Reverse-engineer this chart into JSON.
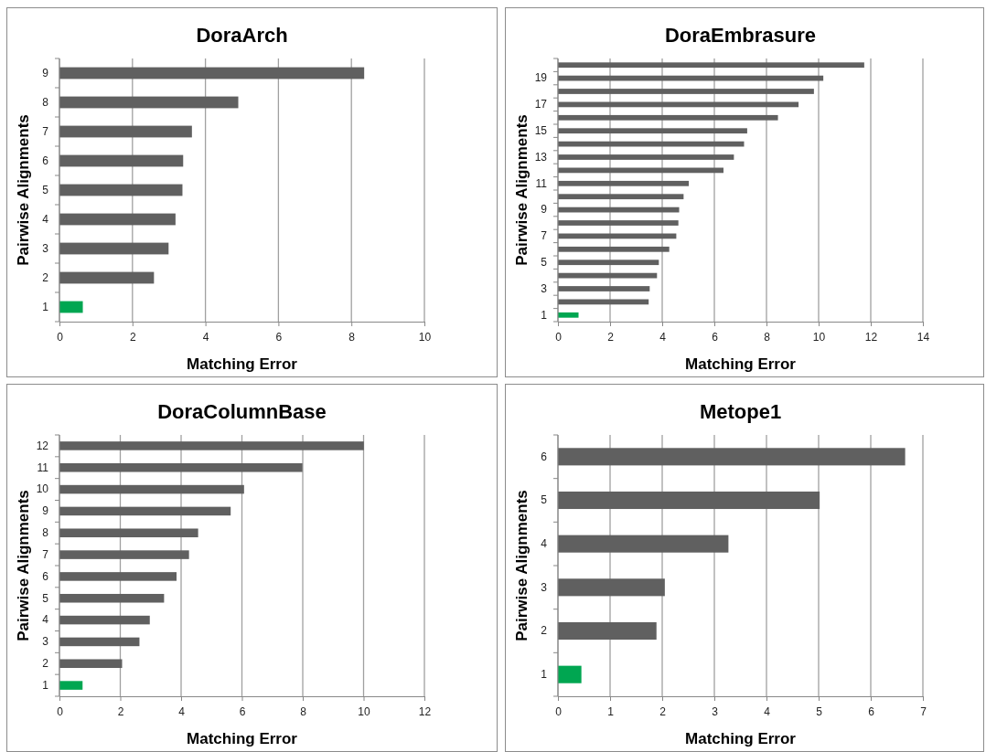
{
  "chart_data": [
    {
      "type": "bar",
      "orientation": "horizontal",
      "title": "DoraArch",
      "xlabel": "Matching Error",
      "ylabel": "Pairwise Alignments",
      "categories": [
        "9",
        "8",
        "7",
        "6",
        "5",
        "4",
        "3",
        "2",
        "1"
      ],
      "values": [
        8.35,
        4.9,
        3.63,
        3.39,
        3.37,
        3.18,
        2.99,
        2.59,
        0.64
      ],
      "colors": [
        "#606060",
        "#606060",
        "#606060",
        "#606060",
        "#606060",
        "#606060",
        "#606060",
        "#606060",
        "#00a651"
      ],
      "xlim": [
        0,
        10
      ],
      "xticks": [
        0,
        2,
        4,
        6,
        8,
        10
      ],
      "grid": "x"
    },
    {
      "type": "bar",
      "orientation": "horizontal",
      "title": "DoraEmbrasure",
      "xlabel": "Matching Error",
      "ylabel": "Pairwise Alignments",
      "categories": [
        null,
        "19",
        null,
        "17",
        null,
        "15",
        null,
        "13",
        null,
        "11",
        null,
        "9",
        null,
        "7",
        null,
        "5",
        null,
        "3",
        null,
        "1"
      ],
      "values": [
        11.75,
        10.18,
        9.82,
        9.23,
        8.44,
        7.26,
        7.14,
        6.75,
        6.35,
        5.02,
        4.82,
        4.65,
        4.62,
        4.54,
        4.27,
        3.87,
        3.8,
        3.52,
        3.48,
        0.79
      ],
      "colors": [
        "#606060",
        "#606060",
        "#606060",
        "#606060",
        "#606060",
        "#606060",
        "#606060",
        "#606060",
        "#606060",
        "#606060",
        "#606060",
        "#606060",
        "#606060",
        "#606060",
        "#606060",
        "#606060",
        "#606060",
        "#606060",
        "#606060",
        "#00a651"
      ],
      "xlim": [
        0,
        14
      ],
      "xticks": [
        0,
        2,
        4,
        6,
        8,
        10,
        12,
        14
      ],
      "grid": "x"
    },
    {
      "type": "bar",
      "orientation": "horizontal",
      "title": "DoraColumnBase",
      "xlabel": "Matching Error",
      "ylabel": "Pairwise Alignments",
      "categories": [
        "12",
        "11",
        "10",
        "9",
        "8",
        "7",
        "6",
        "5",
        "4",
        "3",
        "2",
        "1"
      ],
      "values": [
        10.01,
        7.99,
        6.07,
        5.63,
        4.56,
        4.26,
        3.85,
        3.44,
        2.97,
        2.63,
        2.06,
        0.76
      ],
      "colors": [
        "#606060",
        "#606060",
        "#606060",
        "#606060",
        "#606060",
        "#606060",
        "#606060",
        "#606060",
        "#606060",
        "#606060",
        "#606060",
        "#00a651"
      ],
      "xlim": [
        0,
        12
      ],
      "xticks": [
        0,
        2,
        4,
        6,
        8,
        10,
        12
      ],
      "grid": "x"
    },
    {
      "type": "bar",
      "orientation": "horizontal",
      "title": "Metope1",
      "xlabel": "Matching Error",
      "ylabel": "Pairwise Alignments",
      "categories": [
        "6",
        "5",
        "4",
        "3",
        "2",
        "1"
      ],
      "values": [
        6.66,
        5.02,
        3.27,
        2.05,
        1.89,
        0.45
      ],
      "colors": [
        "#606060",
        "#606060",
        "#606060",
        "#606060",
        "#606060",
        "#00a651"
      ],
      "xlim": [
        0,
        7
      ],
      "xticks": [
        0,
        1,
        2,
        3,
        4,
        5,
        6,
        7
      ],
      "grid": "x"
    }
  ]
}
